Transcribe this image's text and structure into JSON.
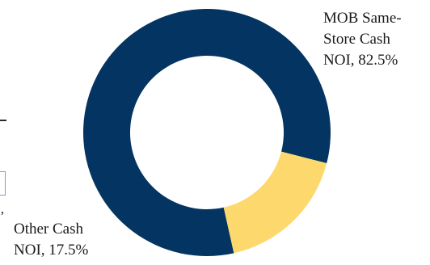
{
  "chart_data": {
    "type": "donut",
    "series": [
      {
        "name": "MOB Same-Store Cash NOI",
        "value": 82.5,
        "label_lines": [
          "MOB Same-",
          "Store Cash",
          "NOI, 82.5%"
        ],
        "color": "#043461"
      },
      {
        "name": "Other Cash NOI",
        "value": 17.5,
        "label_lines": [
          "Other Cash",
          "NOI, 17.5%"
        ],
        "color": "#fdd96d"
      }
    ],
    "start_angle_clockwise_from_top_deg": 167.4,
    "title": "",
    "legend": "none"
  },
  "partial_glyph": "’"
}
